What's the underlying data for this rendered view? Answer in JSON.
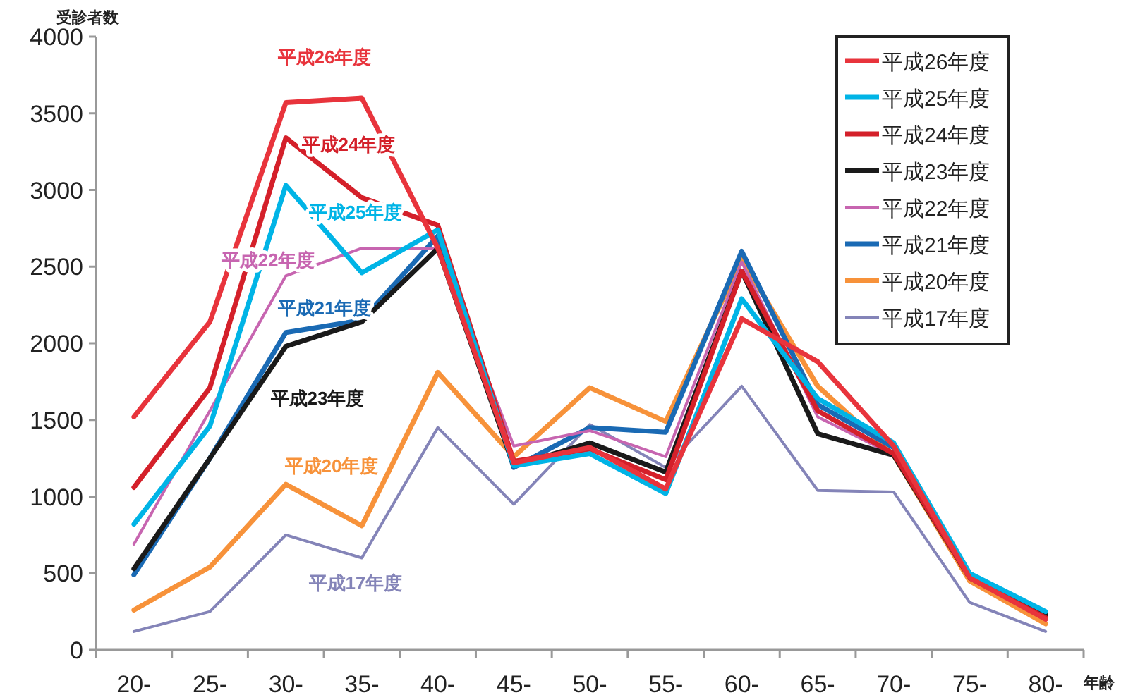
{
  "chart_data": {
    "type": "line",
    "ylabel": "受診者数",
    "xlabel": "年齢",
    "categories": [
      "20-",
      "25-",
      "30-",
      "35-",
      "40-",
      "45-",
      "50-",
      "55-",
      "60-",
      "65-",
      "70-",
      "75-",
      "80-"
    ],
    "ylim": [
      0,
      4000
    ],
    "yticks": [
      0,
      500,
      1000,
      1500,
      2000,
      2500,
      3000,
      3500,
      4000
    ],
    "grid": false,
    "legend": "top right",
    "marker": "none",
    "line_style": "solid",
    "series": [
      {
        "name": "平成26年度",
        "color": "#e8343c",
        "values": [
          1520,
          2140,
          3570,
          3600,
          2620,
          1220,
          1320,
          1050,
          2160,
          1880,
          1330,
          470,
          200
        ]
      },
      {
        "name": "平成25年度",
        "color": "#00b4e6",
        "values": [
          820,
          1460,
          3030,
          2460,
          2740,
          1200,
          1280,
          1020,
          2290,
          1640,
          1350,
          500,
          250
        ]
      },
      {
        "name": "平成24年度",
        "color": "#d4202a",
        "values": [
          1060,
          1710,
          3340,
          2950,
          2770,
          1230,
          1310,
          1110,
          2470,
          1560,
          1280,
          470,
          210
        ]
      },
      {
        "name": "平成23年度",
        "color": "#1a1a1a",
        "values": [
          530,
          1250,
          1980,
          2140,
          2620,
          1200,
          1350,
          1160,
          2470,
          1410,
          1270,
          470,
          230
        ]
      },
      {
        "name": "平成22年度",
        "color": "#c765b0",
        "values": [
          690,
          1560,
          2440,
          2620,
          2620,
          1330,
          1430,
          1260,
          2530,
          1520,
          1270,
          470,
          200
        ]
      },
      {
        "name": "平成21年度",
        "color": "#1a6ab4",
        "values": [
          490,
          1250,
          2070,
          2150,
          2700,
          1190,
          1450,
          1420,
          2600,
          1600,
          1320,
          480,
          220
        ]
      },
      {
        "name": "平成20年度",
        "color": "#f7923a",
        "values": [
          260,
          540,
          1080,
          810,
          1810,
          1260,
          1710,
          1490,
          2550,
          1720,
          1270,
          450,
          170
        ]
      },
      {
        "name": "平成17年度",
        "color": "#8484b8",
        "values": [
          120,
          250,
          750,
          600,
          1450,
          950,
          1470,
          1190,
          1720,
          1040,
          1030,
          310,
          120
        ]
      }
    ]
  }
}
